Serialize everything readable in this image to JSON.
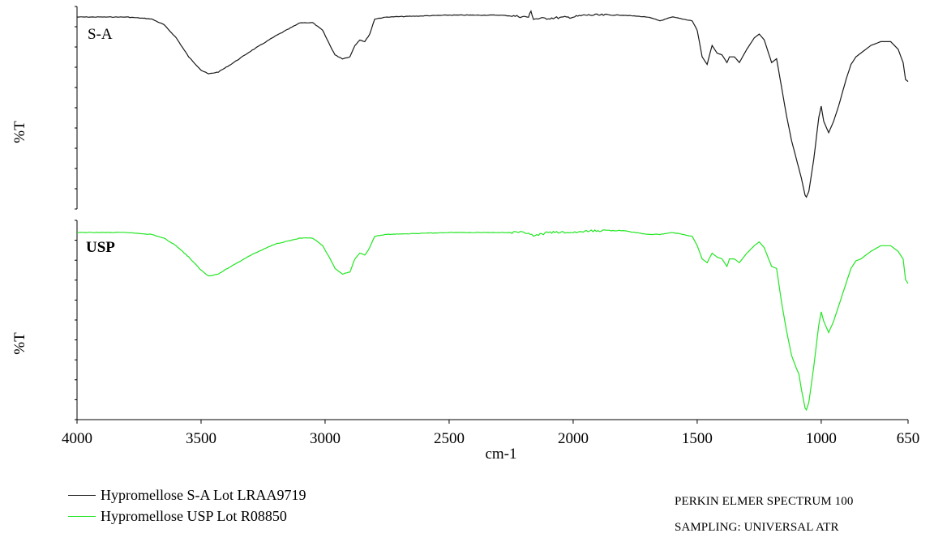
{
  "chart_data": {
    "type": "line",
    "xlabel": "cm-1",
    "ylabel": "%T",
    "x_ticks": [
      4000,
      3500,
      3000,
      2500,
      2000,
      1500,
      1000,
      650
    ],
    "xlim": [
      4000,
      650
    ],
    "x_reversed": true,
    "panels": [
      {
        "label": "S-A",
        "color": "#1a1a1a",
        "series_name": "Hypromellose S-A Lot LRAA9719",
        "points": [
          [
            4000,
            0.03
          ],
          [
            3800,
            0.03
          ],
          [
            3700,
            0.04
          ],
          [
            3650,
            0.07
          ],
          [
            3600,
            0.14
          ],
          [
            3550,
            0.24
          ],
          [
            3500,
            0.31
          ],
          [
            3470,
            0.33
          ],
          [
            3430,
            0.32
          ],
          [
            3380,
            0.28
          ],
          [
            3300,
            0.21
          ],
          [
            3200,
            0.13
          ],
          [
            3100,
            0.06
          ],
          [
            3050,
            0.06
          ],
          [
            3010,
            0.1
          ],
          [
            2980,
            0.18
          ],
          [
            2960,
            0.23
          ],
          [
            2930,
            0.25
          ],
          [
            2900,
            0.24
          ],
          [
            2880,
            0.18
          ],
          [
            2860,
            0.15
          ],
          [
            2840,
            0.16
          ],
          [
            2820,
            0.12
          ],
          [
            2800,
            0.04
          ],
          [
            2750,
            0.03
          ],
          [
            2500,
            0.02
          ],
          [
            2300,
            0.02
          ],
          [
            2180,
            0.03
          ],
          [
            2170,
            0.0
          ],
          [
            2160,
            0.04
          ],
          [
            2000,
            0.03
          ],
          [
            1950,
            0.02
          ],
          [
            1800,
            0.02
          ],
          [
            1700,
            0.03
          ],
          [
            1650,
            0.05
          ],
          [
            1600,
            0.03
          ],
          [
            1520,
            0.05
          ],
          [
            1500,
            0.1
          ],
          [
            1480,
            0.24
          ],
          [
            1460,
            0.28
          ],
          [
            1440,
            0.18
          ],
          [
            1420,
            0.22
          ],
          [
            1400,
            0.23
          ],
          [
            1380,
            0.27
          ],
          [
            1370,
            0.24
          ],
          [
            1350,
            0.24
          ],
          [
            1330,
            0.27
          ],
          [
            1300,
            0.2
          ],
          [
            1270,
            0.14
          ],
          [
            1250,
            0.12
          ],
          [
            1230,
            0.15
          ],
          [
            1200,
            0.27
          ],
          [
            1180,
            0.25
          ],
          [
            1160,
            0.4
          ],
          [
            1140,
            0.55
          ],
          [
            1120,
            0.68
          ],
          [
            1100,
            0.78
          ],
          [
            1090,
            0.83
          ],
          [
            1080,
            0.88
          ],
          [
            1065,
            0.97
          ],
          [
            1060,
            0.98
          ],
          [
            1050,
            0.95
          ],
          [
            1030,
            0.78
          ],
          [
            1010,
            0.56
          ],
          [
            1000,
            0.5
          ],
          [
            990,
            0.58
          ],
          [
            970,
            0.64
          ],
          [
            950,
            0.58
          ],
          [
            930,
            0.5
          ],
          [
            900,
            0.36
          ],
          [
            880,
            0.28
          ],
          [
            860,
            0.24
          ],
          [
            840,
            0.22
          ],
          [
            800,
            0.18
          ],
          [
            760,
            0.16
          ],
          [
            720,
            0.16
          ],
          [
            690,
            0.2
          ],
          [
            670,
            0.27
          ],
          [
            660,
            0.36
          ],
          [
            650,
            0.37
          ]
        ]
      },
      {
        "label": "USP",
        "color": "#22e622",
        "series_name": "Hypromellose USP Lot R08850",
        "points": [
          [
            4000,
            0.03
          ],
          [
            3800,
            0.03
          ],
          [
            3700,
            0.04
          ],
          [
            3650,
            0.06
          ],
          [
            3600,
            0.1
          ],
          [
            3550,
            0.16
          ],
          [
            3500,
            0.23
          ],
          [
            3470,
            0.26
          ],
          [
            3430,
            0.25
          ],
          [
            3380,
            0.21
          ],
          [
            3300,
            0.15
          ],
          [
            3200,
            0.09
          ],
          [
            3100,
            0.06
          ],
          [
            3050,
            0.06
          ],
          [
            3010,
            0.1
          ],
          [
            2980,
            0.17
          ],
          [
            2960,
            0.22
          ],
          [
            2930,
            0.25
          ],
          [
            2900,
            0.24
          ],
          [
            2880,
            0.17
          ],
          [
            2860,
            0.14
          ],
          [
            2840,
            0.15
          ],
          [
            2820,
            0.11
          ],
          [
            2800,
            0.05
          ],
          [
            2750,
            0.04
          ],
          [
            2500,
            0.03
          ],
          [
            2300,
            0.03
          ],
          [
            2180,
            0.03
          ],
          [
            2160,
            0.05
          ],
          [
            2100,
            0.03
          ],
          [
            2000,
            0.03
          ],
          [
            1900,
            0.02
          ],
          [
            1800,
            0.02
          ],
          [
            1700,
            0.04
          ],
          [
            1650,
            0.04
          ],
          [
            1600,
            0.03
          ],
          [
            1520,
            0.05
          ],
          [
            1500,
            0.1
          ],
          [
            1480,
            0.17
          ],
          [
            1460,
            0.19
          ],
          [
            1440,
            0.14
          ],
          [
            1420,
            0.16
          ],
          [
            1400,
            0.17
          ],
          [
            1380,
            0.21
          ],
          [
            1370,
            0.17
          ],
          [
            1350,
            0.17
          ],
          [
            1330,
            0.19
          ],
          [
            1300,
            0.14
          ],
          [
            1270,
            0.1
          ],
          [
            1250,
            0.08
          ],
          [
            1230,
            0.11
          ],
          [
            1200,
            0.21
          ],
          [
            1180,
            0.22
          ],
          [
            1160,
            0.4
          ],
          [
            1140,
            0.55
          ],
          [
            1120,
            0.68
          ],
          [
            1100,
            0.75
          ],
          [
            1090,
            0.78
          ],
          [
            1080,
            0.86
          ],
          [
            1065,
            0.96
          ],
          [
            1060,
            0.97
          ],
          [
            1050,
            0.93
          ],
          [
            1030,
            0.74
          ],
          [
            1010,
            0.52
          ],
          [
            1000,
            0.45
          ],
          [
            990,
            0.5
          ],
          [
            970,
            0.56
          ],
          [
            950,
            0.5
          ],
          [
            930,
            0.42
          ],
          [
            900,
            0.3
          ],
          [
            880,
            0.22
          ],
          [
            860,
            0.18
          ],
          [
            840,
            0.17
          ],
          [
            800,
            0.13
          ],
          [
            760,
            0.1
          ],
          [
            720,
            0.1
          ],
          [
            690,
            0.13
          ],
          [
            670,
            0.17
          ],
          [
            660,
            0.28
          ],
          [
            650,
            0.3
          ]
        ]
      }
    ]
  },
  "legend": [
    {
      "label": "Hypromellose S-A Lot LRAA9719",
      "color": "#1a1a1a"
    },
    {
      "label": "Hypromellose USP Lot R08850",
      "color": "#22e622"
    }
  ],
  "footer": {
    "line1": "PERKIN ELMER SPECTRUM 100",
    "line2": "SAMPLING: UNIVERSAL ATR"
  }
}
